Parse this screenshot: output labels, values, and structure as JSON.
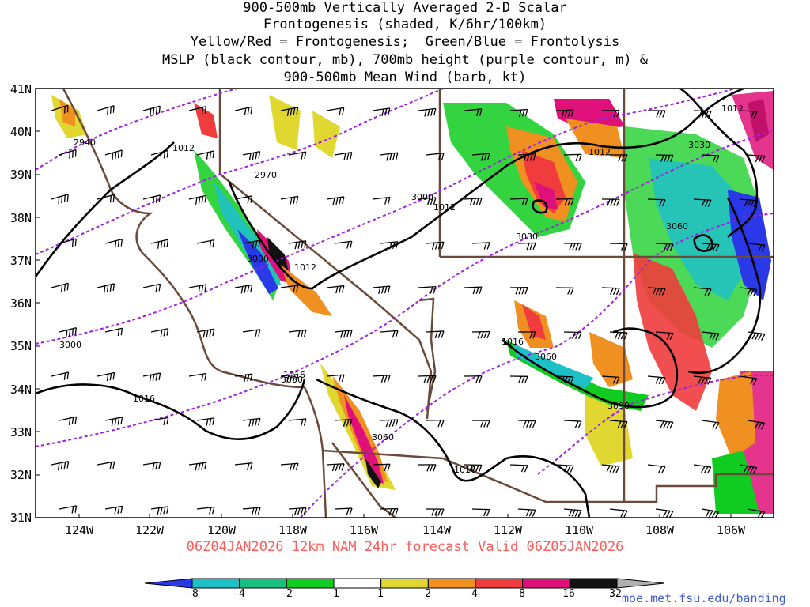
{
  "title": {
    "line1": "900-500mb Vertically Averaged 2-D Scalar",
    "line2": "Frontogenesis (shaded, K/6hr/100km)",
    "line3": "Yellow/Red = Frontogenesis;  Green/Blue = Frontolysis",
    "line4": "MSLP (black contour, mb), 700mb height (purple contour, m) &",
    "line5": "900-500mb Mean Wind (barb, kt)"
  },
  "axes": {
    "lat_labels": [
      "41N",
      "40N",
      "39N",
      "38N",
      "37N",
      "36N",
      "35N",
      "34N",
      "33N",
      "32N",
      "31N"
    ],
    "lon_labels": [
      "124W",
      "122W",
      "120W",
      "118W",
      "116W",
      "114W",
      "112W",
      "110W",
      "108W",
      "106W"
    ]
  },
  "contour_labels": {
    "mslp": [
      "1012",
      "1012",
      "1012",
      "1012",
      "1012",
      "1016",
      "1016",
      "1016",
      "1016"
    ],
    "height": [
      "2940",
      "2970",
      "3000",
      "3000",
      "3000",
      "3030",
      "3030",
      "3030",
      "3060",
      "3060",
      "3060",
      "3090"
    ]
  },
  "valid_text": "06Z04JAN2026 12km NAM 24hr forecast Valid 06Z05JAN2026",
  "colorbar": {
    "labels": [
      "-8",
      "-4",
      "-2",
      "-1",
      "1",
      "2",
      "4",
      "8",
      "16",
      "32"
    ],
    "colors": [
      "#2a38e8",
      "#1ec0c8",
      "#18c080",
      "#10cc20",
      "#ffffff",
      "#e0d830",
      "#f09020",
      "#f03c3c",
      "#e0107a",
      "#111111",
      "#b0b0b0"
    ]
  },
  "credit": "moe.met.fsu.edu/banding",
  "colors": {
    "coast": "#6b4a3a",
    "mslp": "#000000",
    "height": "#a020e0",
    "valid_text": "#ff5a5a",
    "credit": "#3a5ad6"
  }
}
